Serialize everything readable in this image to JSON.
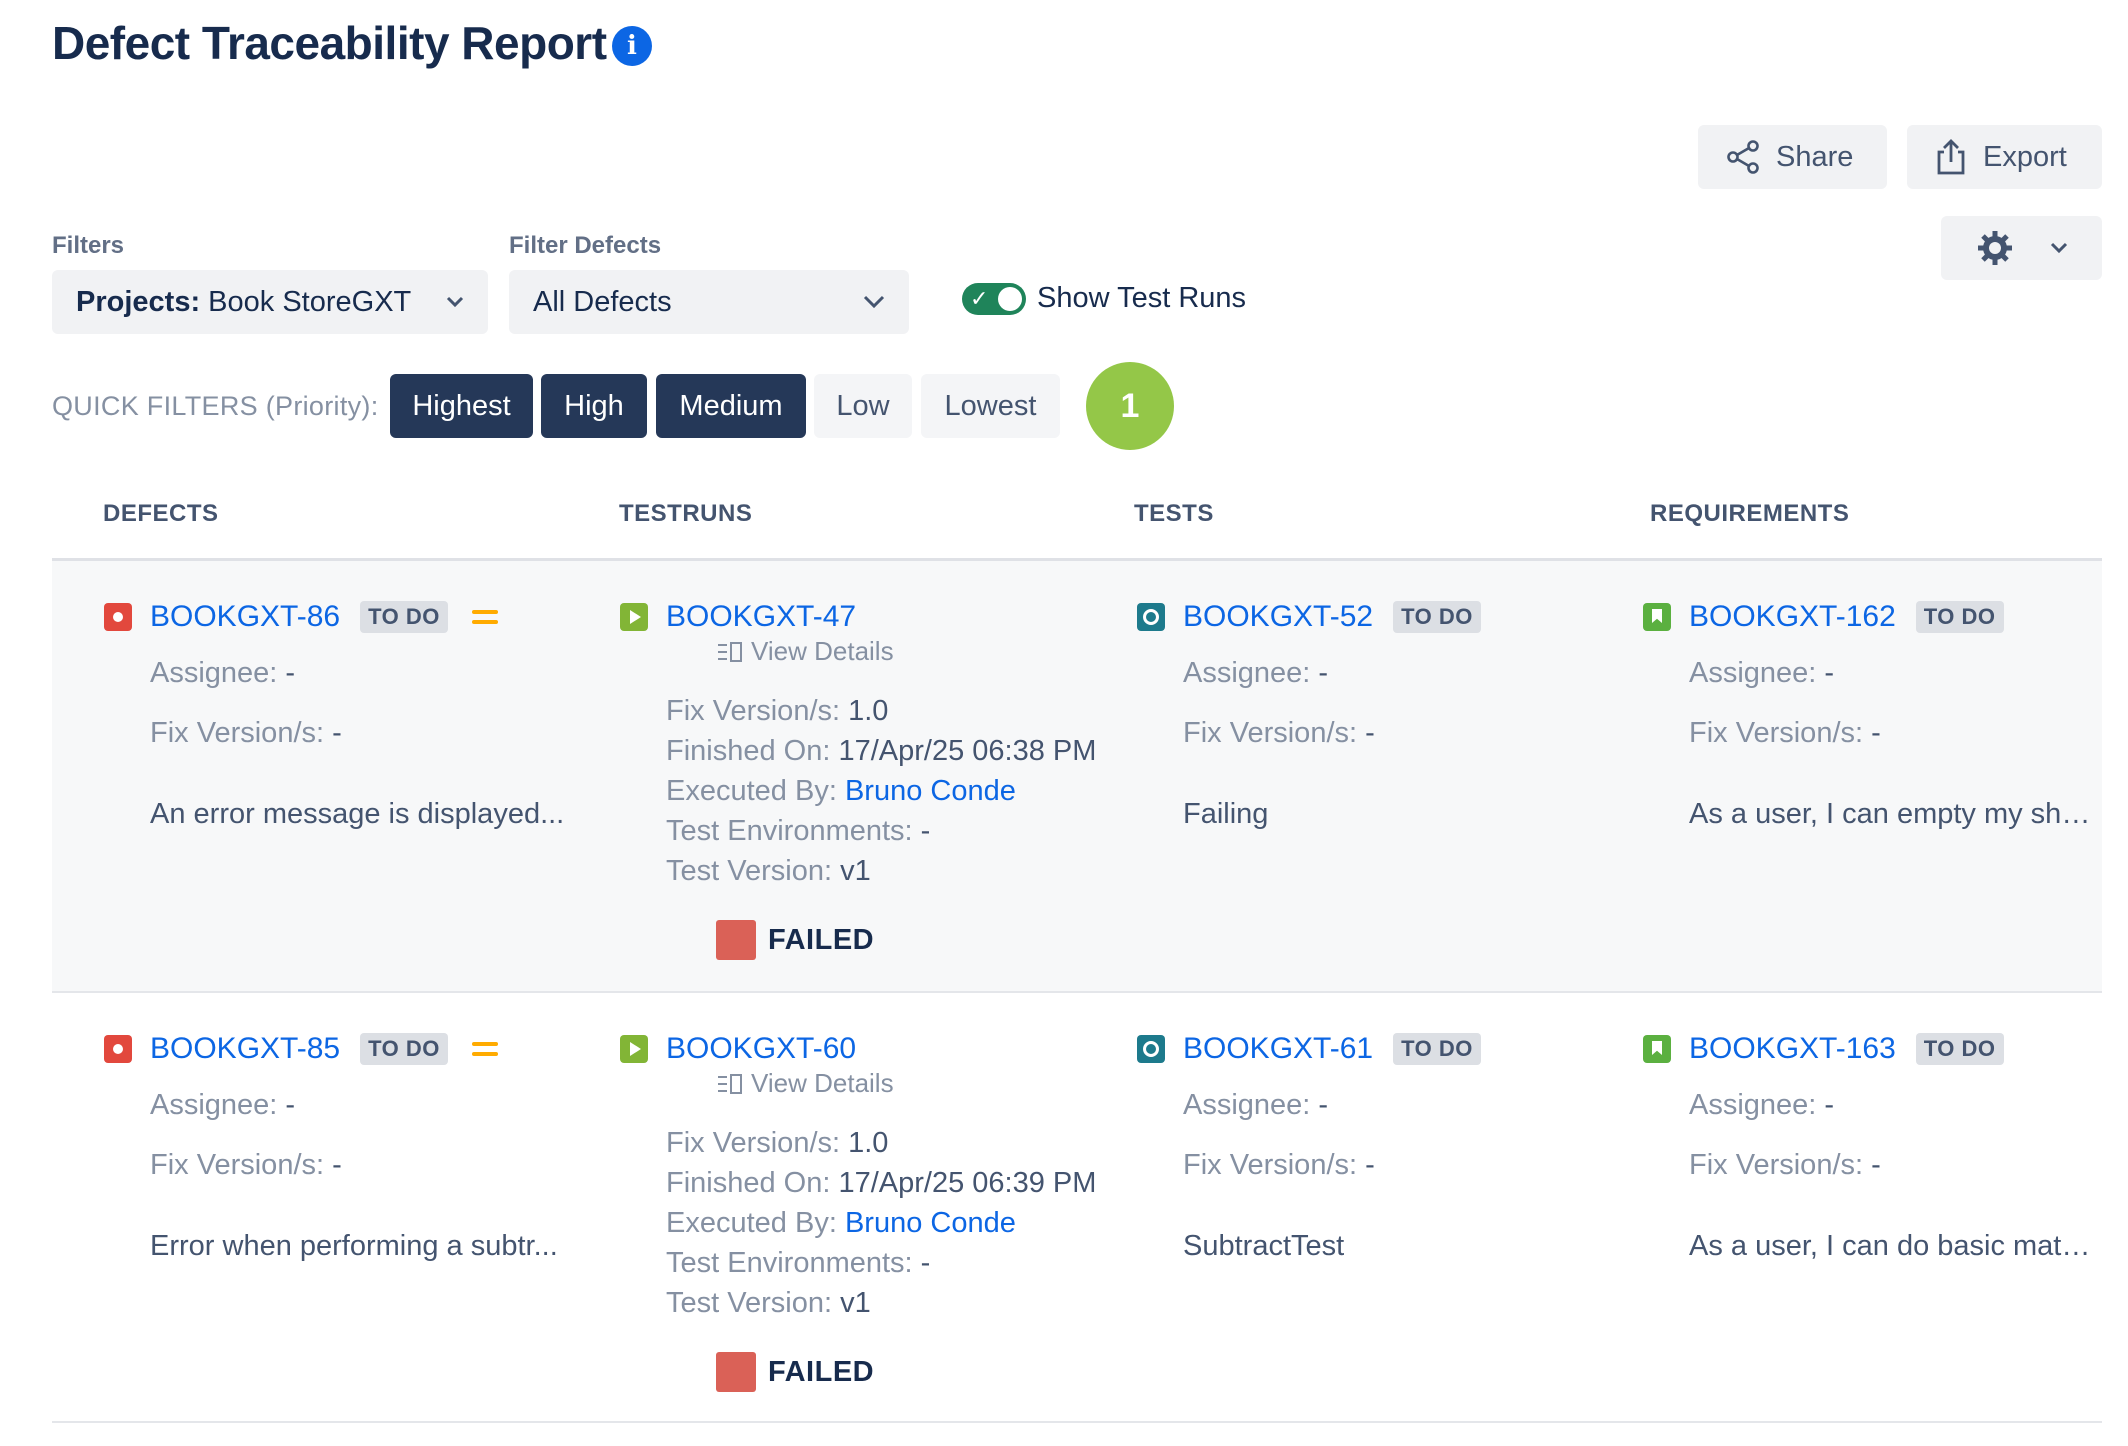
{
  "page": {
    "title": "Defect Traceability Report"
  },
  "toolbar": {
    "share_label": "Share",
    "export_label": "Export"
  },
  "filters": {
    "label": "Filters",
    "projects_prefix": "Projects:",
    "projects_value": "Book StoreGXT",
    "defects_label": "Filter Defects",
    "defects_value": "All Defects",
    "show_test_runs_label": "Show Test Runs",
    "show_test_runs_on": true
  },
  "quick_filters": {
    "label": "QUICK FILTERS (Priority):",
    "options": [
      {
        "label": "Highest",
        "active": true
      },
      {
        "label": "High",
        "active": true
      },
      {
        "label": "Medium",
        "active": true
      },
      {
        "label": "Low",
        "active": false
      },
      {
        "label": "Lowest",
        "active": false
      }
    ],
    "result_count": "1"
  },
  "columns": [
    "DEFECTS",
    "TESTRUNS",
    "TESTS",
    "REQUIREMENTS"
  ],
  "labels": {
    "assignee": "Assignee:",
    "fix_versions": "Fix Version/s:",
    "finished_on": "Finished On:",
    "executed_by": "Executed By:",
    "test_environments": "Test Environments:",
    "test_version": "Test Version:",
    "view_details": "View Details"
  },
  "rows": [
    {
      "defect": {
        "key": "BOOKGXT-86",
        "status": "TO DO",
        "priority": "Medium",
        "assignee": "-",
        "fix_versions": "-",
        "summary": "An error message is displayed..."
      },
      "testrun": {
        "key": "BOOKGXT-47",
        "fix_versions": "1.0",
        "finished_on": "17/Apr/25 06:38 PM",
        "executed_by": "Bruno Conde",
        "test_environments": "-",
        "test_version": "v1",
        "status": "FAILED"
      },
      "test": {
        "key": "BOOKGXT-52",
        "status": "TO DO",
        "assignee": "-",
        "fix_versions": "-",
        "summary": "Failing"
      },
      "requirement": {
        "key": "BOOKGXT-162",
        "status": "TO DO",
        "assignee": "-",
        "fix_versions": "-",
        "summary": "As a user, I can empty my sho..."
      }
    },
    {
      "defect": {
        "key": "BOOKGXT-85",
        "status": "TO DO",
        "priority": "Medium",
        "assignee": "-",
        "fix_versions": "-",
        "summary": "Error when performing a subtr..."
      },
      "testrun": {
        "key": "BOOKGXT-60",
        "fix_versions": "1.0",
        "finished_on": "17/Apr/25 06:39 PM",
        "executed_by": "Bruno Conde",
        "test_environments": "-",
        "test_version": "v1",
        "status": "FAILED"
      },
      "test": {
        "key": "BOOKGXT-61",
        "status": "TO DO",
        "assignee": "-",
        "fix_versions": "-",
        "summary": "SubtractTest"
      },
      "requirement": {
        "key": "BOOKGXT-163",
        "status": "TO DO",
        "assignee": "-",
        "fix_versions": "-",
        "summary": "As a user, I can do basic math ..."
      }
    }
  ],
  "colors": {
    "accent": "#0c66e4",
    "active_filter": "#253858",
    "failed": "#da6157",
    "count_badge": "#94c748",
    "toggle_on": "#1f845a"
  }
}
